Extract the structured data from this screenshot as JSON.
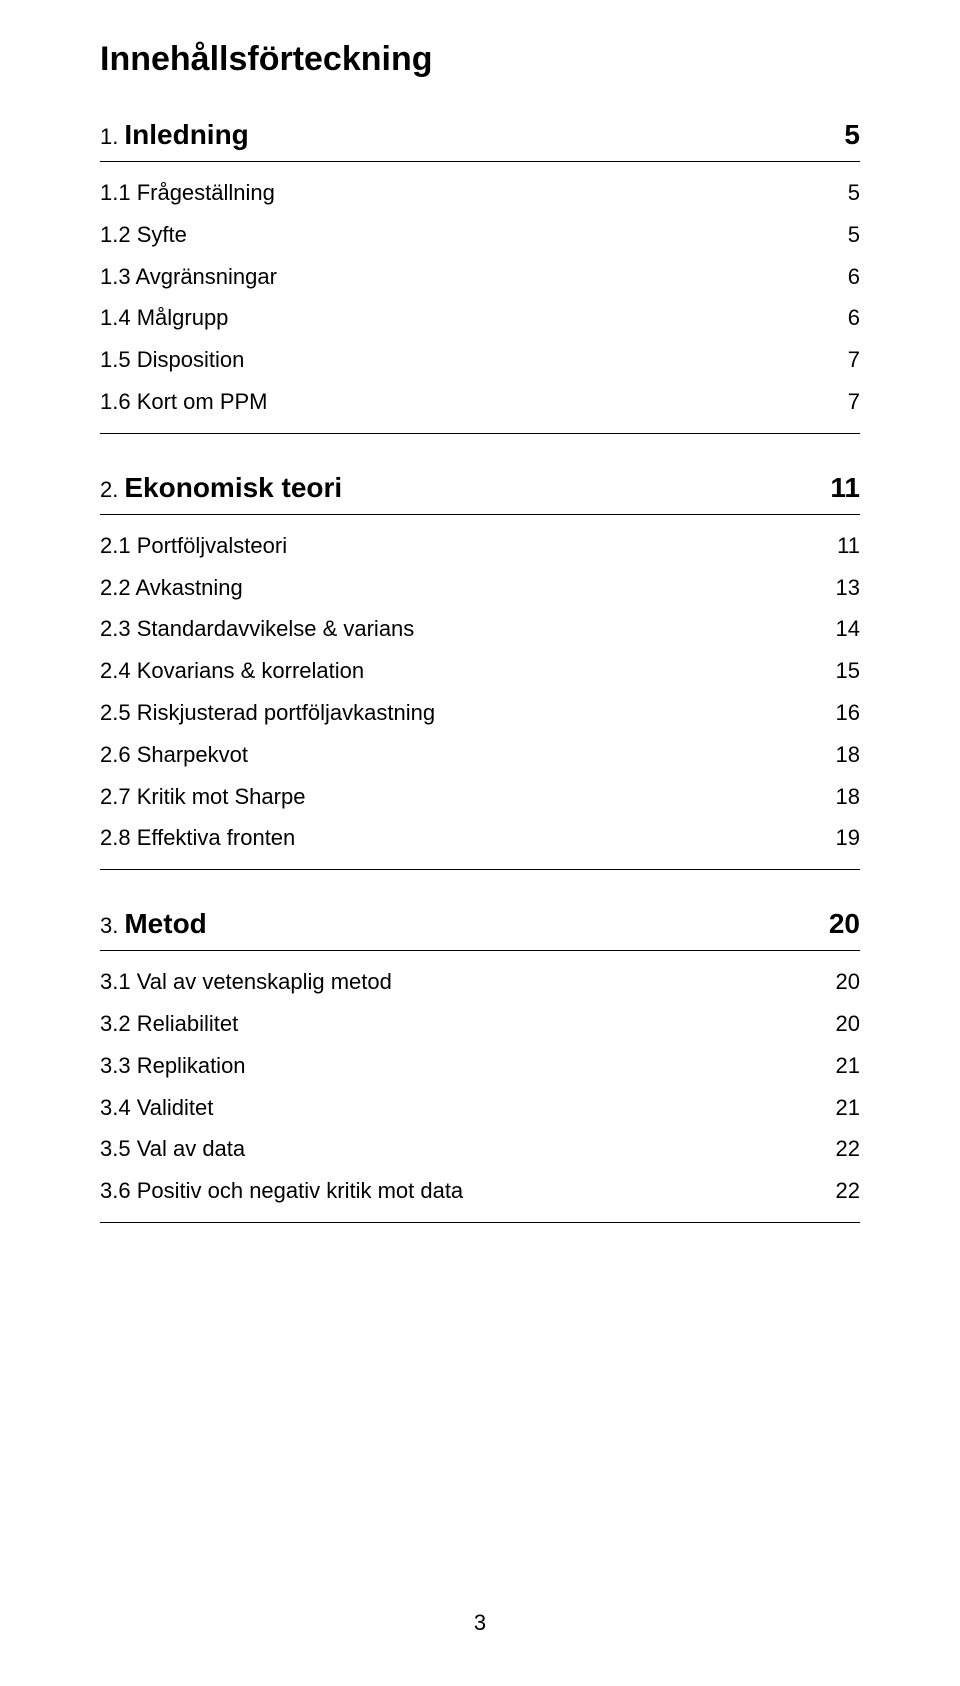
{
  "title": "Innehållsförteckning",
  "pageNumber": "3",
  "sections": [
    {
      "heading": {
        "num": "1.",
        "text": "Inledning",
        "page": "5"
      },
      "entries": [
        {
          "label": "1.1 Frågeställning",
          "page": "5"
        },
        {
          "label": "1.2 Syfte",
          "page": "5"
        },
        {
          "label": "1.3 Avgränsningar",
          "page": "6"
        },
        {
          "label": "1.4 Målgrupp",
          "page": "6"
        },
        {
          "label": "1.5 Disposition",
          "page": "7"
        },
        {
          "label": "1.6 Kort om PPM",
          "page": "7"
        }
      ]
    },
    {
      "heading": {
        "num": "2.",
        "text": "Ekonomisk teori",
        "page": "11"
      },
      "entries": [
        {
          "label": "2.1 Portföljvalsteori",
          "page": "11"
        },
        {
          "label": "2.2 Avkastning",
          "page": "13"
        },
        {
          "label": "2.3 Standardavvikelse & varians",
          "page": "14"
        },
        {
          "label": "2.4 Kovarians & korrelation",
          "page": "15"
        },
        {
          "label": "2.5 Riskjusterad portföljavkastning",
          "page": "16"
        },
        {
          "label": "2.6 Sharpekvot",
          "page": "18"
        },
        {
          "label": "2.7 Kritik mot Sharpe",
          "page": "18"
        },
        {
          "label": "2.8 Effektiva fronten",
          "page": "19"
        }
      ]
    },
    {
      "heading": {
        "num": "3.",
        "text": "Metod",
        "page": "20"
      },
      "entries": [
        {
          "label": "3.1 Val av vetenskaplig metod",
          "page": "20"
        },
        {
          "label": "3.2 Reliabilitet",
          "page": "20"
        },
        {
          "label": "3.3 Replikation",
          "page": "21"
        },
        {
          "label": "3.4 Validitet",
          "page": "21"
        },
        {
          "label": "3.5 Val av data",
          "page": "22"
        },
        {
          "label": "3.6 Positiv och negativ kritik mot data",
          "page": "22"
        }
      ]
    }
  ]
}
